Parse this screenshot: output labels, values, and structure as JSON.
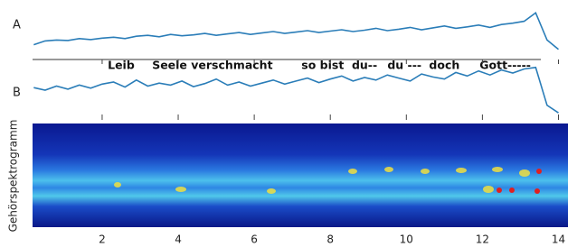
{
  "chart_data": [
    {
      "type": "line",
      "label": "A",
      "color": "#2a7db8",
      "ylim": [
        0,
        100
      ],
      "x": [
        0.2,
        0.5,
        0.8,
        1.1,
        1.4,
        1.7,
        2.0,
        2.3,
        2.6,
        2.9,
        3.2,
        3.5,
        3.8,
        4.1,
        4.4,
        4.7,
        5.0,
        5.3,
        5.6,
        5.9,
        6.2,
        6.5,
        6.8,
        7.1,
        7.4,
        7.7,
        8.0,
        8.3,
        8.6,
        8.9,
        9.2,
        9.5,
        9.8,
        10.1,
        10.4,
        10.7,
        11.0,
        11.3,
        11.6,
        11.9,
        12.2,
        12.5,
        12.8,
        13.1,
        13.4,
        13.7,
        14.0
      ],
      "values": [
        20,
        28,
        30,
        29,
        33,
        31,
        34,
        36,
        33,
        38,
        40,
        37,
        42,
        39,
        41,
        44,
        40,
        43,
        46,
        42,
        45,
        48,
        44,
        47,
        50,
        46,
        49,
        52,
        48,
        51,
        55,
        50,
        53,
        57,
        52,
        56,
        60,
        55,
        58,
        62,
        57,
        63,
        66,
        70,
        88,
        30,
        10
      ]
    },
    {
      "type": "line",
      "label": "B",
      "color": "#2a7db8",
      "ylim": [
        0,
        100
      ],
      "x": [
        0.2,
        0.5,
        0.8,
        1.1,
        1.4,
        1.7,
        2.0,
        2.3,
        2.6,
        2.9,
        3.2,
        3.5,
        3.8,
        4.1,
        4.4,
        4.7,
        5.0,
        5.3,
        5.6,
        5.9,
        6.2,
        6.5,
        6.8,
        7.1,
        7.4,
        7.7,
        8.0,
        8.3,
        8.6,
        8.9,
        9.2,
        9.5,
        9.8,
        10.1,
        10.4,
        10.7,
        11.0,
        11.3,
        11.6,
        11.9,
        12.2,
        12.5,
        12.8,
        13.1,
        13.4,
        13.7,
        14.0
      ],
      "values": [
        55,
        50,
        58,
        52,
        60,
        54,
        62,
        66,
        56,
        70,
        58,
        64,
        60,
        68,
        57,
        63,
        72,
        60,
        66,
        58,
        64,
        70,
        62,
        68,
        74,
        65,
        72,
        78,
        68,
        75,
        70,
        80,
        74,
        68,
        82,
        76,
        72,
        85,
        78,
        88,
        80,
        90,
        84,
        92,
        95,
        20,
        5
      ],
      "annotations": [
        {
          "text": "Leib",
          "x": 2.5
        },
        {
          "text": "Seele verschmacht",
          "x": 4.9
        },
        {
          "text": "so bist",
          "x": 7.8
        },
        {
          "text": "du--",
          "x": 8.9
        },
        {
          "text": "du ---",
          "x": 9.95
        },
        {
          "text": "doch",
          "x": 11.0
        },
        {
          "text": "Gott-----",
          "x": 12.6
        }
      ]
    },
    {
      "type": "heatmap",
      "ylabel": "Gehörspektrogramm",
      "xlim": [
        0.17,
        14.25
      ],
      "xticks": [
        2,
        4,
        6,
        8,
        10,
        12,
        14
      ]
    }
  ]
}
